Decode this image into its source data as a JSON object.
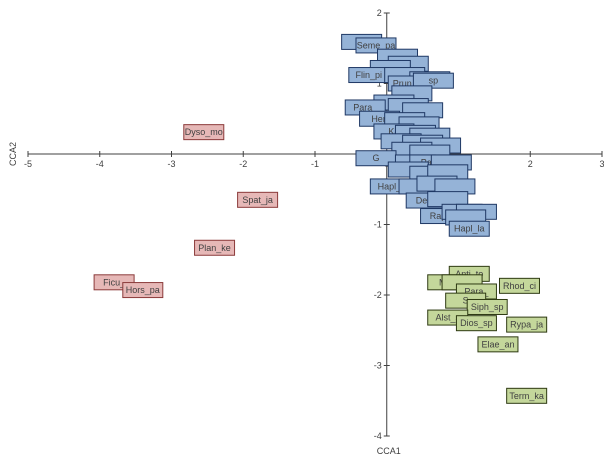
{
  "chart_data": {
    "type": "scatter",
    "title": "",
    "xlabel": "CCA1",
    "ylabel": "CCA2",
    "xlim": [
      -5,
      3
    ],
    "ylim": [
      -4,
      2
    ],
    "xticks": [
      -5,
      -4,
      -3,
      -2,
      -1,
      0,
      1,
      2,
      3
    ],
    "yticks": [
      2,
      1,
      0,
      -1,
      -2,
      -3,
      -4
    ],
    "grid": false,
    "series": [
      {
        "color": "#e6b8b7",
        "border": "#8b3a3a",
        "points": [
          {
            "label": "Dyso_mo",
            "x": -2.55,
            "y": 0.31
          },
          {
            "label": "Spat_ja",
            "x": -1.8,
            "y": -0.65
          },
          {
            "label": "Plan_ke",
            "x": -2.4,
            "y": -1.33
          },
          {
            "label": "Ficu_",
            "x": -3.8,
            "y": -1.82
          },
          {
            "label": "Hors_pa",
            "x": -3.4,
            "y": -1.93
          }
        ]
      },
      {
        "color": "#95b3d7",
        "border": "#1f3864",
        "points": [
          {
            "label": "",
            "x": -0.35,
            "y": 1.59
          },
          {
            "label": "Seme_pa",
            "x": -0.15,
            "y": 1.54
          },
          {
            "label": "",
            "x": 0.15,
            "y": 1.38
          },
          {
            "label": "",
            "x": 0.3,
            "y": 1.28
          },
          {
            "label": "",
            "x": 0.05,
            "y": 1.22
          },
          {
            "label": "Flin_pi",
            "x": -0.25,
            "y": 1.12
          },
          {
            "label": "",
            "x": 0.25,
            "y": 1.12
          },
          {
            "label": "",
            "x": 0.6,
            "y": 1.06
          },
          {
            "label": "Prun_ja",
            "x": 0.3,
            "y": 1.0
          },
          {
            "label": "sp",
            "x": 0.65,
            "y": 1.04
          },
          {
            "label": "",
            "x": 0.35,
            "y": 0.86
          },
          {
            "label": "",
            "x": 0.1,
            "y": 0.73
          },
          {
            "label": "Para_",
            "x": -0.3,
            "y": 0.66
          },
          {
            "label": "",
            "x": 0.3,
            "y": 0.68
          },
          {
            "label": "",
            "x": 0.5,
            "y": 0.62
          },
          {
            "label": "Heri",
            "x": -0.1,
            "y": 0.5
          },
          {
            "label": "",
            "x": 0.25,
            "y": 0.48
          },
          {
            "label": "",
            "x": 0.45,
            "y": 0.42
          },
          {
            "label": "Ka",
            "x": 0.1,
            "y": 0.32
          },
          {
            "label": "",
            "x": 0.4,
            "y": 0.3
          },
          {
            "label": "",
            "x": 0.6,
            "y": 0.26
          },
          {
            "label": "",
            "x": 0.2,
            "y": 0.18
          },
          {
            "label": "",
            "x": 0.5,
            "y": 0.16
          },
          {
            "label": "",
            "x": 0.75,
            "y": 0.12
          },
          {
            "label": "",
            "x": 0.35,
            "y": 0.06
          },
          {
            "label": "",
            "x": 0.6,
            "y": 0.02
          },
          {
            "label": "G",
            "x": -0.15,
            "y": -0.06
          },
          {
            "label": "Ma",
            "x": 0.4,
            "y": -0.12
          },
          {
            "label": "Pala",
            "x": 0.6,
            "y": -0.12
          },
          {
            "label": "",
            "x": 0.9,
            "y": -0.12
          },
          {
            "label": "",
            "x": 0.3,
            "y": -0.22
          },
          {
            "label": "",
            "x": 0.6,
            "y": -0.28
          },
          {
            "label": "",
            "x": 0.85,
            "y": -0.26
          },
          {
            "label": "Hapl_l",
            "x": 0.05,
            "y": -0.46
          },
          {
            "label": "",
            "x": 0.45,
            "y": -0.46
          },
          {
            "label": "",
            "x": 0.7,
            "y": -0.42
          },
          {
            "label": "",
            "x": 0.95,
            "y": -0.46
          },
          {
            "label": "Deca",
            "x": 0.55,
            "y": -0.66
          },
          {
            "label": "",
            "x": 0.85,
            "y": -0.64
          },
          {
            "label": "Rapa",
            "x": 0.75,
            "y": -0.88
          },
          {
            "label": "",
            "x": 1.05,
            "y": -0.82
          },
          {
            "label": "",
            "x": 1.25,
            "y": -0.82
          },
          {
            "label": "",
            "x": 1.1,
            "y": -0.9
          },
          {
            "label": "Hapl_la",
            "x": 1.15,
            "y": -1.06
          }
        ]
      },
      {
        "color": "#c4d79b",
        "border": "#2e3a12",
        "points": [
          {
            "label": "Anti_to",
            "x": 1.15,
            "y": -1.7
          },
          {
            "label": "Mon",
            "x": 0.85,
            "y": -1.82
          },
          {
            "label": "",
            "x": 1.05,
            "y": -1.82
          },
          {
            "label": "Rhod_ci",
            "x": 1.85,
            "y": -1.87
          },
          {
            "label": "Para_",
            "x": 1.25,
            "y": -1.95
          },
          {
            "label": "S",
            "x": 1.1,
            "y": -2.08
          },
          {
            "label": "Siph_sp",
            "x": 1.4,
            "y": -2.17
          },
          {
            "label": "Alst_s",
            "x": 0.85,
            "y": -2.32
          },
          {
            "label": "Dios_sp",
            "x": 1.25,
            "y": -2.4
          },
          {
            "label": "Rypa_ja",
            "x": 1.95,
            "y": -2.42
          },
          {
            "label": "Elae_an",
            "x": 1.55,
            "y": -2.7
          },
          {
            "label": "Term_ka",
            "x": 1.95,
            "y": -3.43
          }
        ]
      }
    ]
  }
}
